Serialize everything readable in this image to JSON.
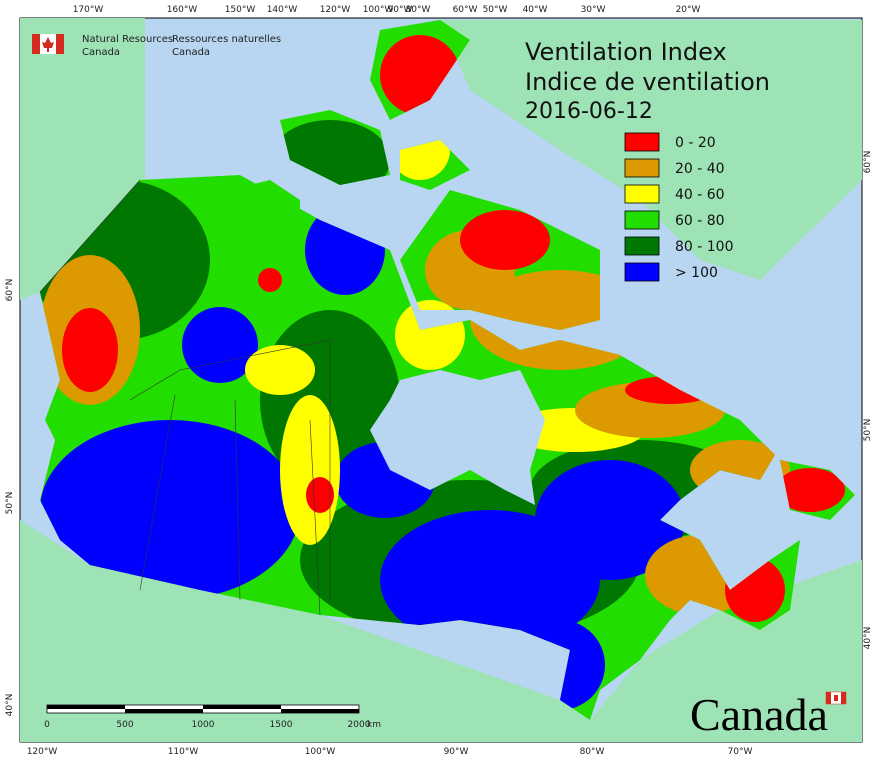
{
  "agency": {
    "en_line1": "Natural Resources",
    "en_line2": "Canada",
    "fr_line1": "Ressources naturelles",
    "fr_line2": "Canada"
  },
  "title": {
    "en": "Ventilation Index",
    "fr": "Indice de ventilation",
    "date": "2016-06-12"
  },
  "legend": [
    {
      "label": "0 - 20",
      "color": "#ff0000"
    },
    {
      "label": "20 - 40",
      "color": "#dd9900"
    },
    {
      "label": "40 - 60",
      "color": "#ffff00"
    },
    {
      "label": "60 - 80",
      "color": "#22dd00"
    },
    {
      "label": "80 - 100",
      "color": "#007700"
    },
    {
      "label": "> 100",
      "color": "#0000ff"
    }
  ],
  "graticule": {
    "top": [
      "170°W",
      "160°W",
      "150°W",
      "140°W",
      "120°W",
      "100°W",
      "90°W",
      "80°W",
      "60°W",
      "50°W",
      "40°W",
      "30°W",
      "20°W"
    ],
    "bottom": [
      "120°W",
      "110°W",
      "100°W",
      "90°W",
      "80°W",
      "70°W"
    ],
    "left": [
      "60°N",
      "50°N",
      "40°N"
    ],
    "right": [
      "60°N",
      "50°N",
      "40°N"
    ]
  },
  "scale_bar": {
    "labels": [
      "0",
      "500",
      "1000",
      "1500",
      "2000"
    ],
    "unit": "km"
  },
  "wordmark": "Canada"
}
